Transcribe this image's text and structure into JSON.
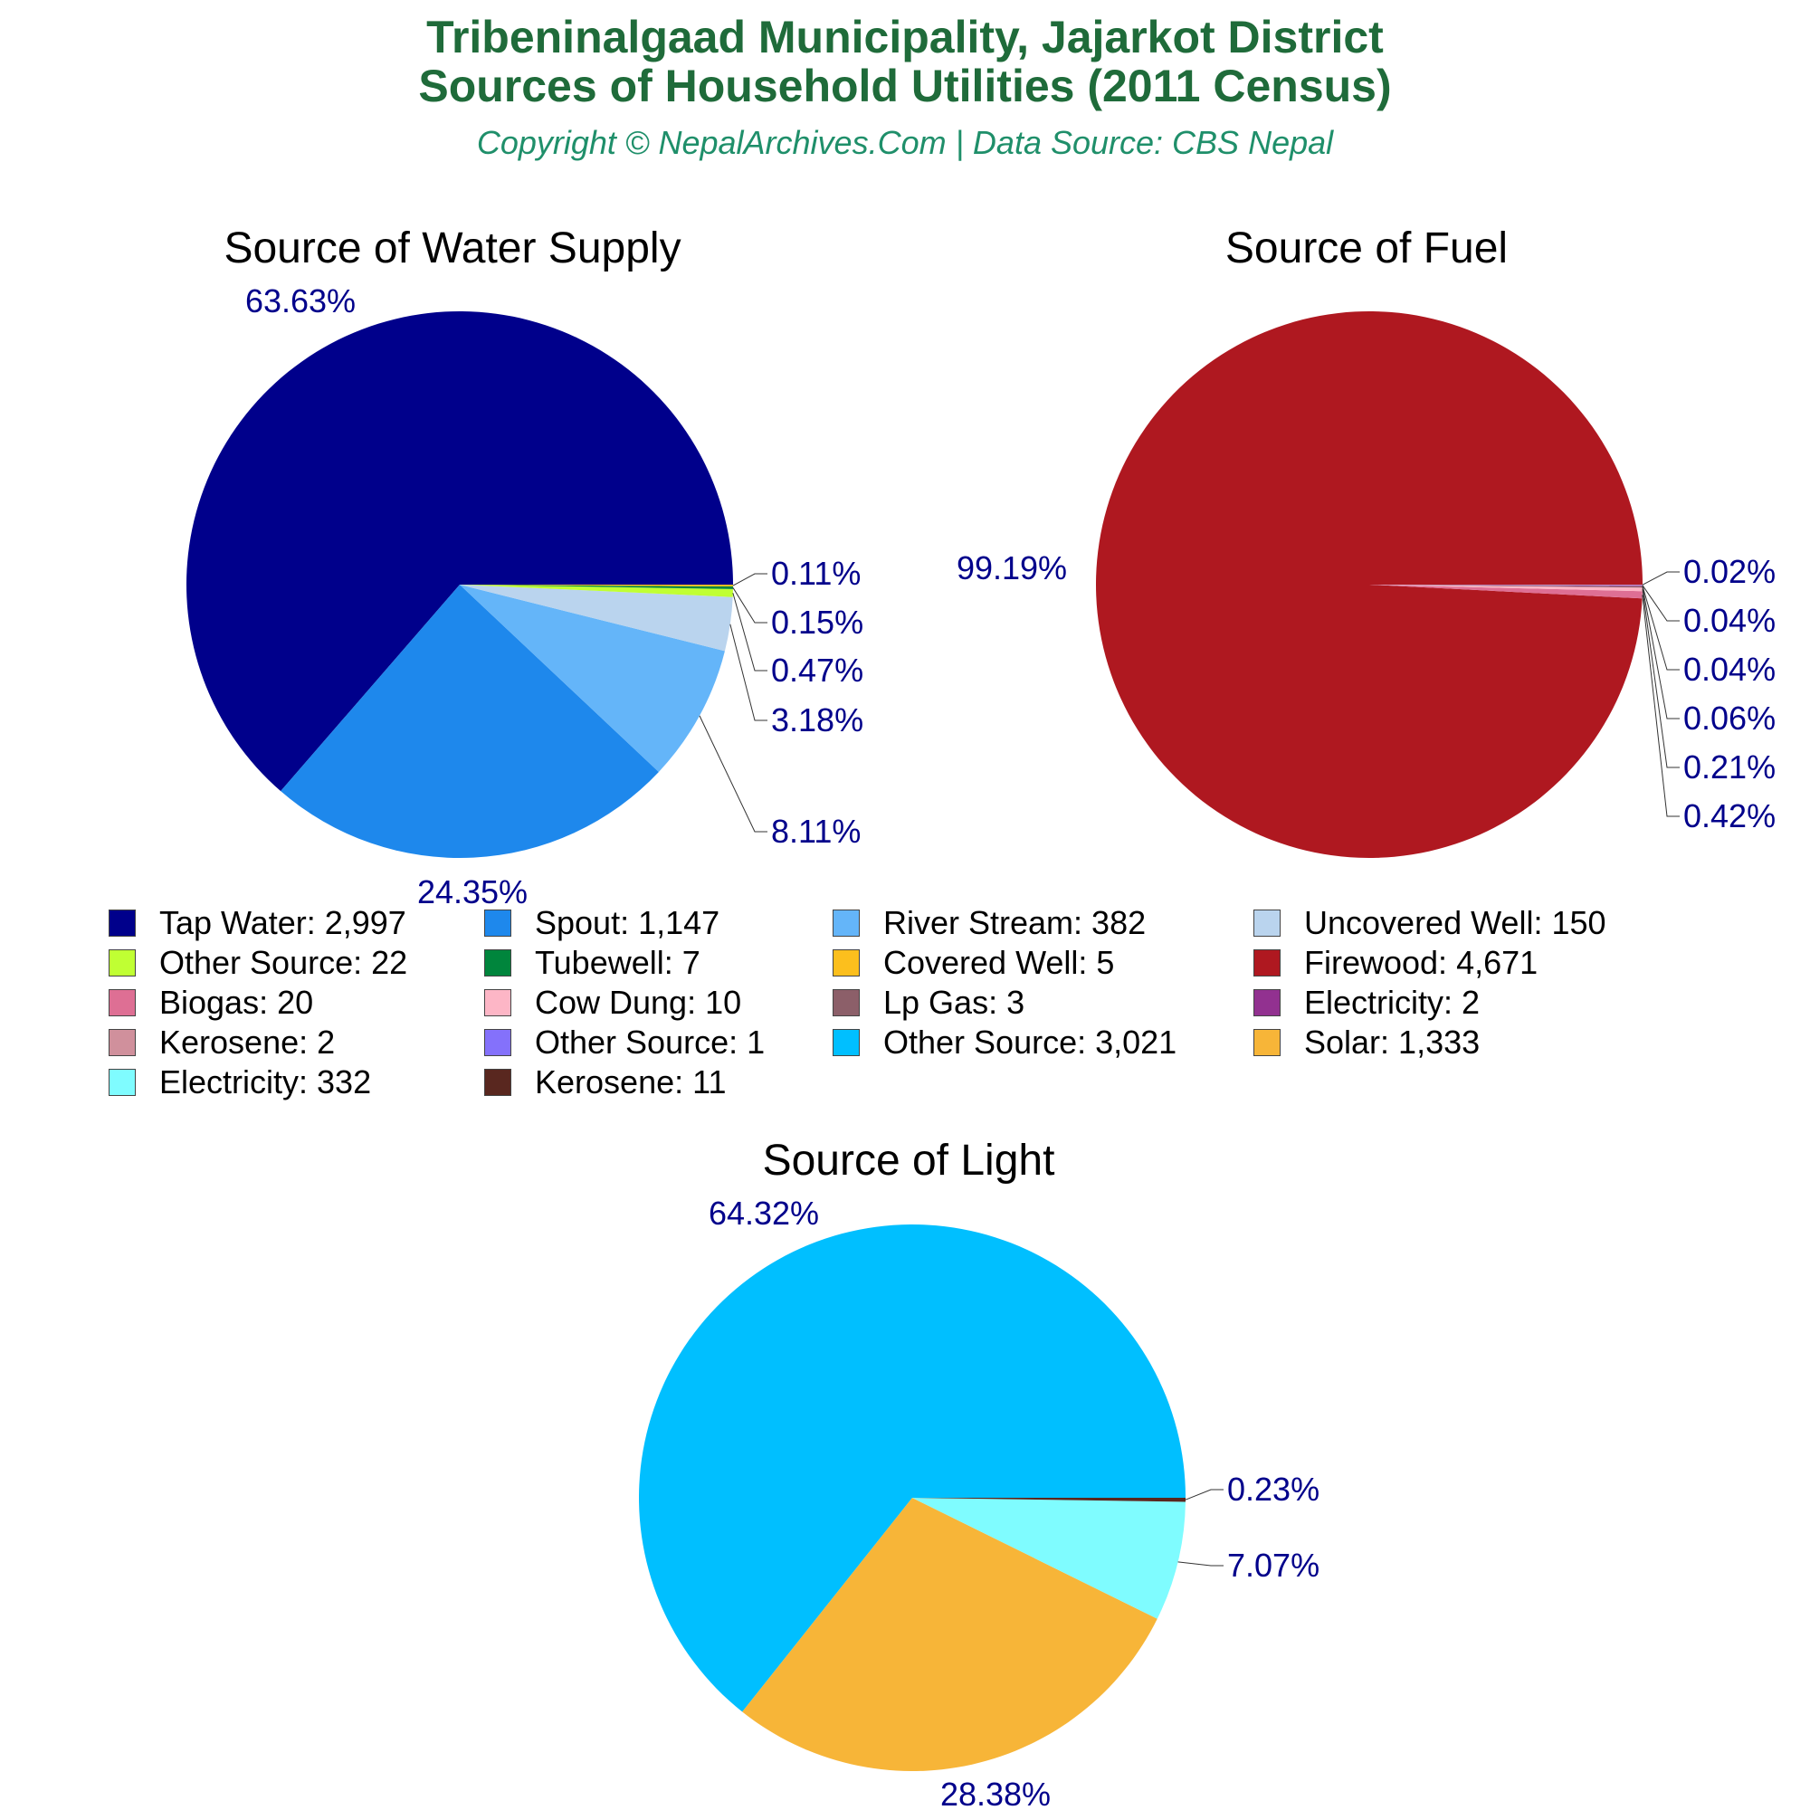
{
  "header": {
    "title_line1": "Tribeninalgaad Municipality, Jajarkot District",
    "title_line2": "Sources of Household Utilities (2011 Census)",
    "subtitle": "Copyright © NepalArchives.Com | Data Source: CBS Nepal",
    "title_color": "#1f6b3a",
    "subtitle_color": "#1f8f6a",
    "pct_label_color": "#00008b"
  },
  "chart_data": [
    {
      "type": "pie",
      "title": "Source of Water Supply",
      "categories": [
        "Tap Water",
        "Spout",
        "River Stream",
        "Uncovered Well",
        "Other Source",
        "Tubewell",
        "Covered Well"
      ],
      "values": [
        2997,
        1147,
        382,
        150,
        22,
        7,
        5
      ],
      "percent_labels": [
        "63.63%",
        "24.35%",
        "8.11%",
        "3.18%",
        "0.47%",
        "0.15%",
        "0.11%"
      ],
      "colors": [
        "#00008b",
        "#1e88ec",
        "#64b5f9",
        "#bad4ee",
        "#c0ff33",
        "#00853c",
        "#fcbf1d"
      ]
    },
    {
      "type": "pie",
      "title": "Source of Fuel",
      "categories": [
        "Firewood",
        "Biogas",
        "Cow Dung",
        "Lp Gas",
        "Electricity",
        "Kerosene",
        "Other Source"
      ],
      "values": [
        4671,
        20,
        10,
        3,
        2,
        2,
        1
      ],
      "percent_labels": [
        "99.19%",
        "0.42%",
        "0.21%",
        "0.06%",
        "0.04%",
        "0.04%",
        "0.02%"
      ],
      "colors": [
        "#af1820",
        "#de6f94",
        "#fdb6c6",
        "#8c5f69",
        "#923190",
        "#d0909c",
        "#8471fb"
      ]
    },
    {
      "type": "pie",
      "title": "Source of Light",
      "categories": [
        "Other Source",
        "Solar",
        "Electricity",
        "Kerosene"
      ],
      "values": [
        3021,
        1333,
        332,
        11
      ],
      "percent_labels": [
        "64.32%",
        "28.38%",
        "7.07%",
        "0.23%"
      ],
      "colors": [
        "#00bfff",
        "#f7b538",
        "#7ffcff",
        "#59271f"
      ]
    }
  ],
  "legend": {
    "items": [
      {
        "label": "Tap Water: 2,997",
        "color": "#00008b"
      },
      {
        "label": "Spout: 1,147",
        "color": "#1e88ec"
      },
      {
        "label": "River Stream: 382",
        "color": "#64b5f9"
      },
      {
        "label": "Uncovered Well: 150",
        "color": "#bad4ee"
      },
      {
        "label": "Other Source: 22",
        "color": "#c0ff33"
      },
      {
        "label": "Tubewell: 7",
        "color": "#00853c"
      },
      {
        "label": "Covered Well: 5",
        "color": "#fcbf1d"
      },
      {
        "label": "Firewood: 4,671",
        "color": "#af1820"
      },
      {
        "label": "Biogas: 20",
        "color": "#de6f94"
      },
      {
        "label": "Cow Dung: 10",
        "color": "#fdb6c6"
      },
      {
        "label": "Lp Gas: 3",
        "color": "#8c5f69"
      },
      {
        "label": "Electricity: 2",
        "color": "#923190"
      },
      {
        "label": "Kerosene: 2",
        "color": "#d0909c"
      },
      {
        "label": "Other Source: 1",
        "color": "#8471fb"
      },
      {
        "label": "Other Source: 3,021",
        "color": "#00bfff"
      },
      {
        "label": "Solar: 1,333",
        "color": "#f7b538"
      },
      {
        "label": "Electricity: 332",
        "color": "#7ffcff"
      },
      {
        "label": "Kerosene: 11",
        "color": "#59271f"
      }
    ]
  }
}
